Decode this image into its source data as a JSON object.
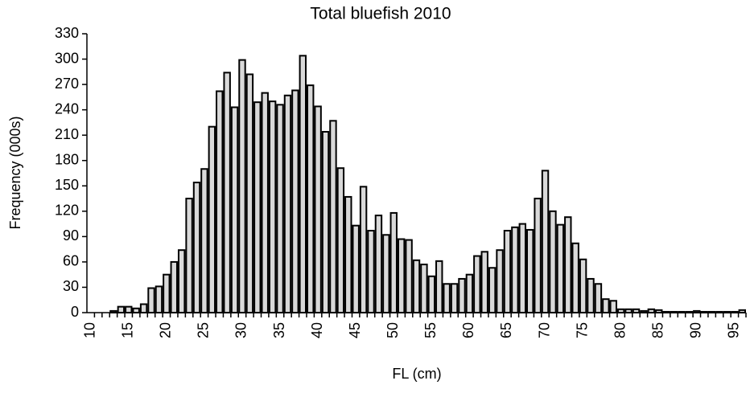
{
  "chart_data": {
    "type": "bar",
    "title": "Total bluefish 2010",
    "x_label": "FL (cm)",
    "y_label": "Frequency (000s)",
    "categories": [
      "10",
      null,
      null,
      null,
      null,
      "15",
      null,
      null,
      null,
      null,
      "20",
      null,
      null,
      null,
      null,
      "25",
      null,
      null,
      null,
      null,
      "30",
      null,
      null,
      null,
      null,
      "35",
      null,
      null,
      null,
      null,
      "40",
      null,
      null,
      null,
      null,
      "45",
      null,
      null,
      null,
      null,
      "50",
      null,
      null,
      null,
      null,
      "55",
      null,
      null,
      null,
      null,
      "60",
      null,
      null,
      null,
      null,
      "65",
      null,
      null,
      null,
      null,
      "70",
      null,
      null,
      null,
      null,
      "75",
      null,
      null,
      null,
      null,
      "80",
      null,
      null,
      null,
      null,
      "85",
      null,
      null,
      null,
      null,
      "90",
      null,
      null,
      null,
      null,
      "95",
      null
    ],
    "values": [
      0,
      0,
      0,
      2,
      7,
      7,
      5,
      10,
      29,
      31,
      45,
      60,
      74,
      135,
      154,
      170,
      220,
      262,
      284,
      243,
      299,
      282,
      249,
      260,
      250,
      246,
      257,
      263,
      304,
      269,
      244,
      214,
      227,
      171,
      137,
      103,
      149,
      97,
      115,
      92,
      118,
      87,
      86,
      62,
      57,
      43,
      61,
      34,
      34,
      40,
      45,
      67,
      72,
      53,
      74,
      97,
      101,
      105,
      98,
      135,
      168,
      120,
      104,
      113,
      82,
      63,
      40,
      34,
      16,
      14,
      4,
      4,
      4,
      2,
      4,
      3,
      1,
      1,
      1,
      1,
      2,
      1,
      1,
      1,
      1,
      1,
      3
    ],
    "color": "#d9d9d9",
    "ylim": [
      0,
      330
    ],
    "yticks": [
      0,
      30,
      60,
      90,
      120,
      150,
      180,
      210,
      240,
      270,
      300,
      330
    ],
    "grid": false
  }
}
